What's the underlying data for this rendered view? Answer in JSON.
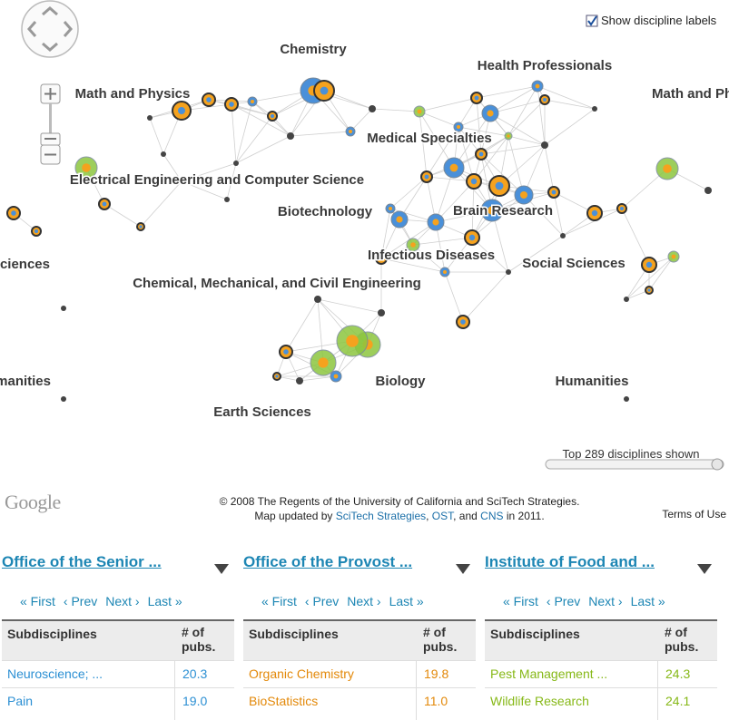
{
  "map": {
    "show_labels": "Show discipline labels",
    "labels": [
      "Chemistry",
      "Health Professionals",
      "Math and Physics",
      "Math and Physics",
      "Medical Specialties",
      "Electrical Engineering and Computer Science",
      "Biotechnology",
      "Brain Research",
      "Infectious Diseases",
      "Social Sciences",
      "Social Sciences",
      "Chemical, Mechanical, and Civil Engineering",
      "Biology",
      "Humanities",
      "Humanities",
      "Earth Sciences"
    ],
    "shown": "Top 289 disciplines shown"
  },
  "footer": {
    "logo": "Google",
    "credit_line1": "© 2008 The Regents of the University of California and SciTech Strategies.",
    "credit_line2": [
      {
        "text": "Map updated by "
      },
      {
        "text": "SciTech Strategies",
        "link": true
      },
      {
        "text": ", "
      },
      {
        "text": "OST",
        "link": true
      },
      {
        "text": ", and "
      },
      {
        "text": "CNS",
        "link": true
      },
      {
        "text": " in 2011."
      }
    ],
    "terms": "Terms of Use"
  },
  "nav": [
    "« First",
    "‹ Prev",
    "Next ›",
    "Last »"
  ],
  "headers": [
    "Subdisciplines",
    "# of pubs."
  ],
  "panels": [
    {
      "title": "Office of the Senior ...",
      "color": "#2b8fd3",
      "rows": [
        [
          "Neuroscience; ...",
          "20.3"
        ],
        [
          "Pain",
          "19.0"
        ]
      ]
    },
    {
      "title": "Office of the Provost ...",
      "color": "#e3890a",
      "rows": [
        [
          "Organic Chemistry",
          "19.8"
        ],
        [
          "BioStatistics",
          "11.0"
        ]
      ]
    },
    {
      "title": "Institute of Food and ...",
      "color": "#86b817",
      "rows": [
        [
          "Pest Management ...",
          "24.3"
        ],
        [
          "Wildlife Research",
          "24.1"
        ]
      ]
    }
  ]
}
